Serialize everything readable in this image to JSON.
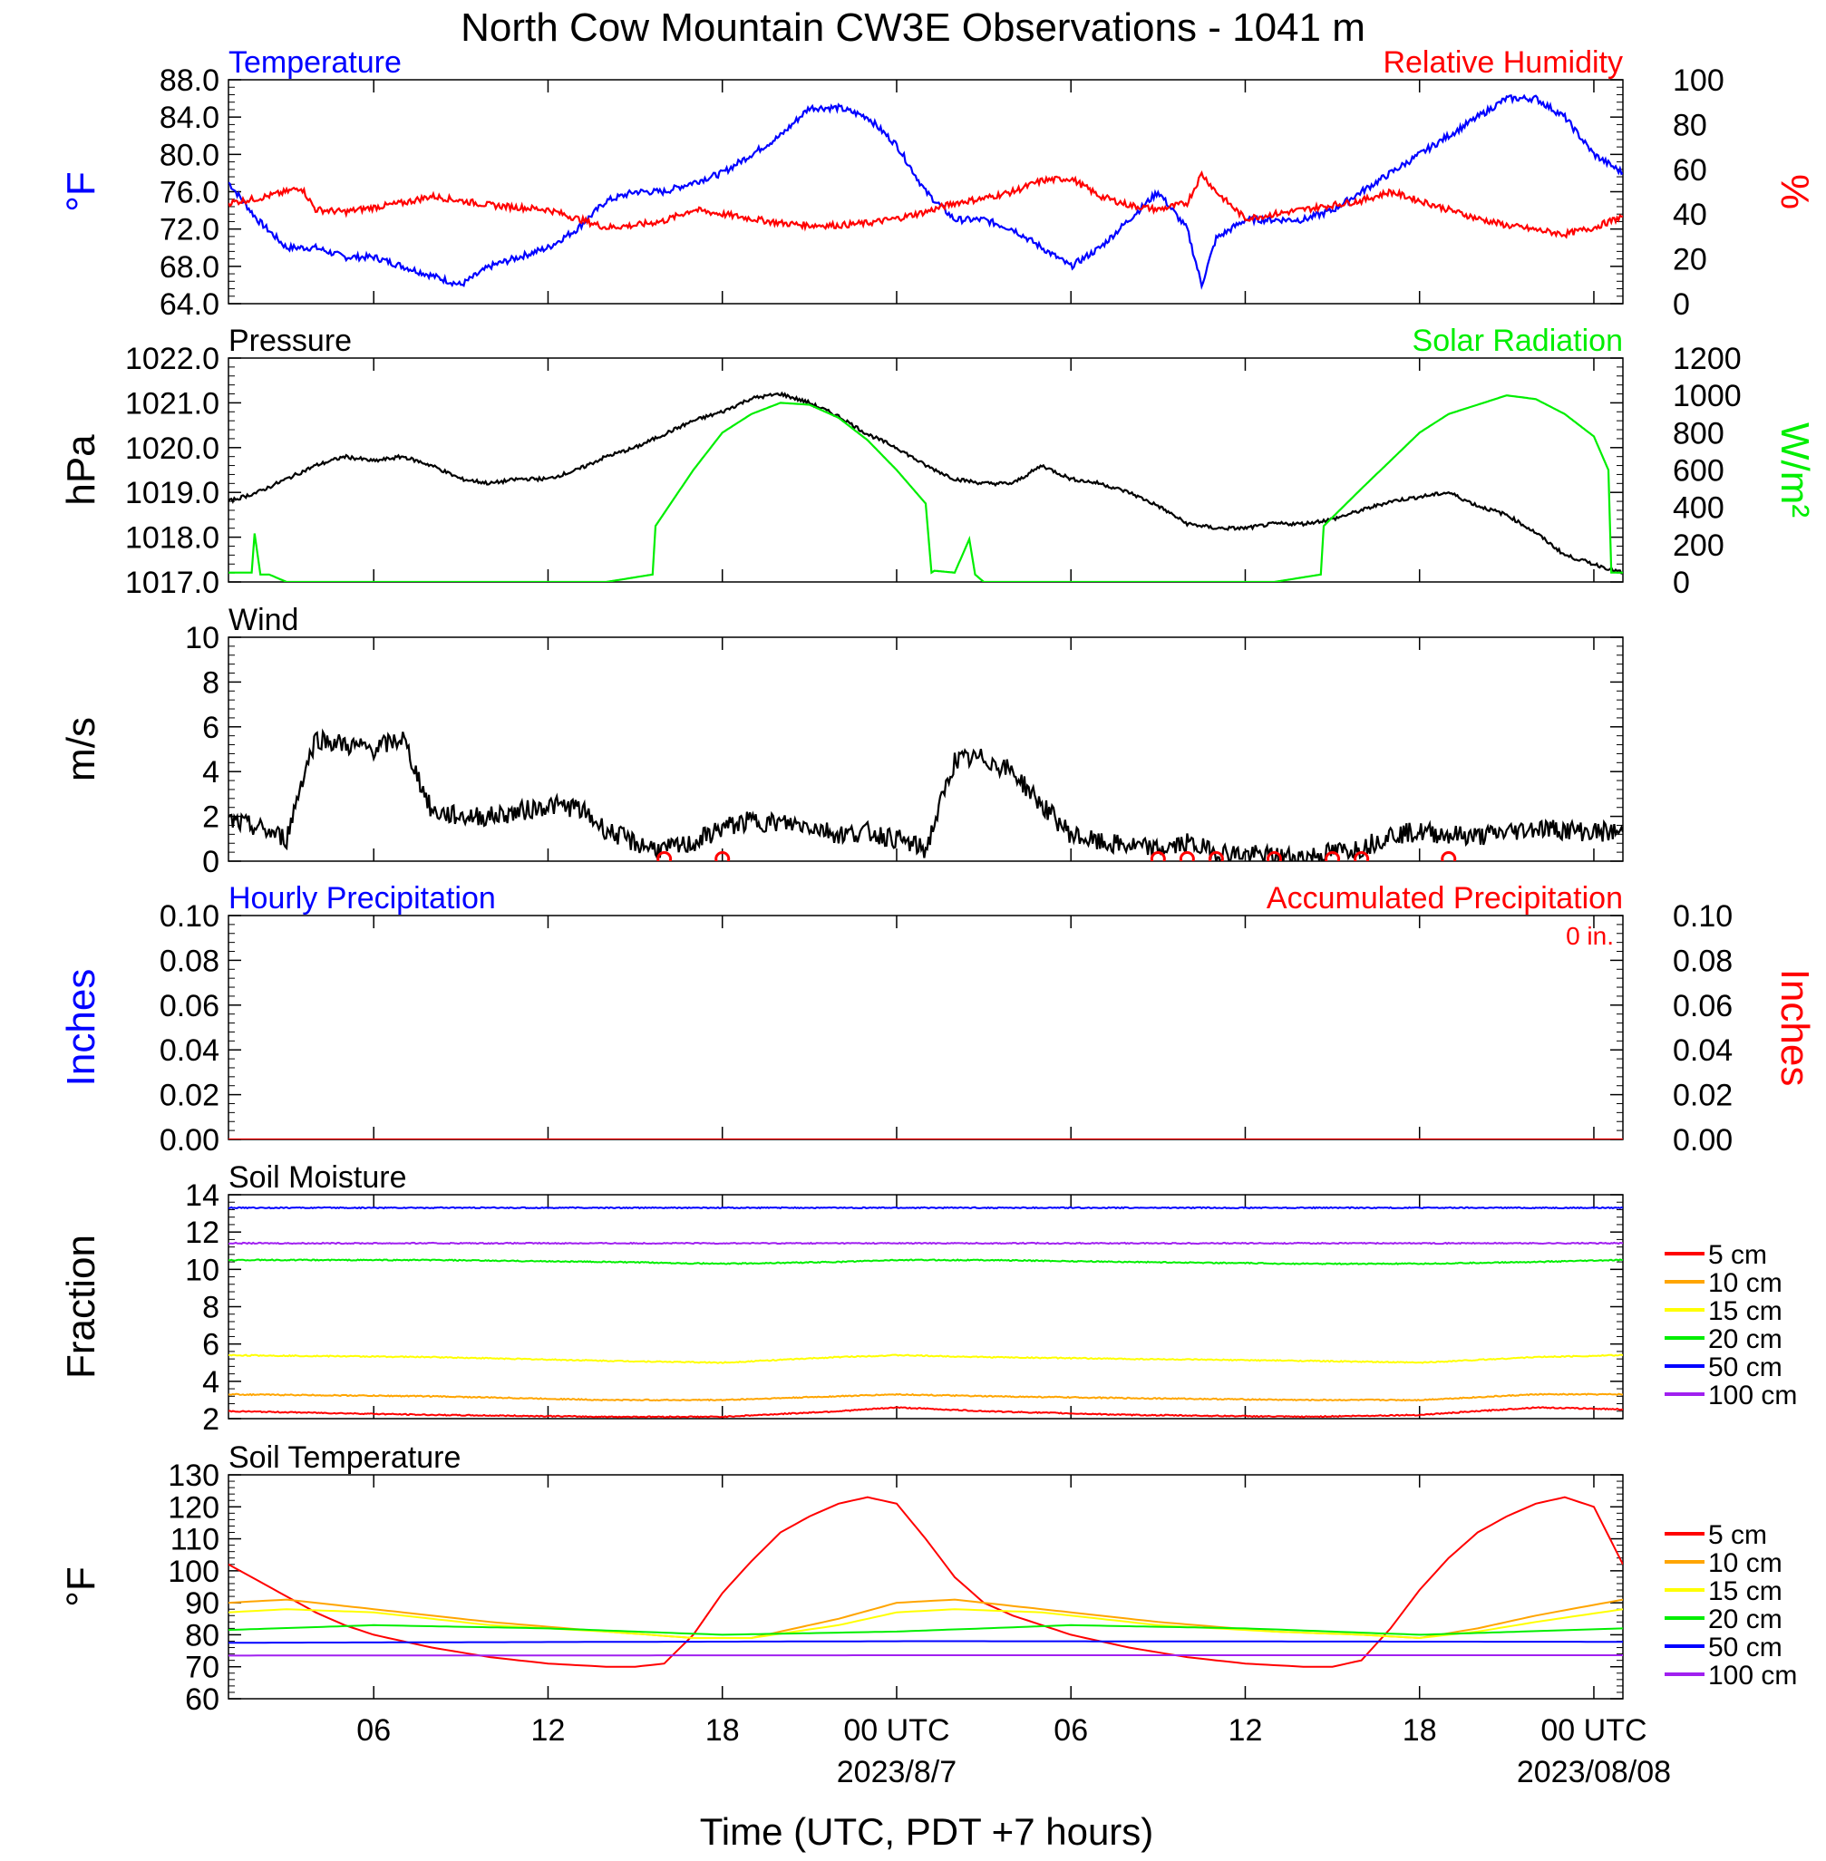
{
  "figure": {
    "title": "North Cow Mountain CW3E Observations - 1041 m",
    "xlabel": "Time (UTC, PDT +7 hours)",
    "x_ticks": [
      {
        "t": 6,
        "label": "06"
      },
      {
        "t": 12,
        "label": "12"
      },
      {
        "t": 18,
        "label": "18"
      },
      {
        "t": 24,
        "label": "00 UTC"
      },
      {
        "t": 30,
        "label": "06"
      },
      {
        "t": 36,
        "label": "12"
      },
      {
        "t": 42,
        "label": "18"
      },
      {
        "t": 48,
        "label": "00 UTC"
      }
    ],
    "date_labels": [
      {
        "t": 24,
        "label": "2023/8/7"
      },
      {
        "t": 48,
        "label": "2023/08/08"
      }
    ],
    "colors": {
      "blue": "#0000ff",
      "red": "#ff0000",
      "green": "#00ee00",
      "black": "#000000",
      "orange": "#ffa500",
      "yellow": "#ffff00",
      "purple": "#a020f0"
    }
  },
  "chart_data": [
    {
      "type": "line",
      "panel": "temperature_rh",
      "title_left": "Temperature",
      "title_right": "Relative Humidity",
      "ylabel_left": "°F",
      "ylabel_right": "%",
      "ylim_left": [
        64,
        88
      ],
      "ylim_right": [
        0,
        100
      ],
      "yticks_left": [
        "88.0",
        "84.0",
        "80.0",
        "76.0",
        "72.0",
        "68.0",
        "64.0"
      ],
      "yticks_right": [
        "100",
        "80",
        "60",
        "40",
        "20",
        "0"
      ],
      "x_start_hour": 1,
      "x_end_hour": 49,
      "series": [
        {
          "axis": "left",
          "color": "blue",
          "x": [
            1,
            2,
            3,
            4,
            5,
            6,
            7,
            8,
            9,
            10,
            11,
            12,
            13,
            14,
            15,
            16,
            17,
            18,
            19,
            20,
            21,
            22,
            23,
            24,
            25,
            26,
            27,
            28,
            29,
            30,
            31,
            32,
            33,
            34,
            34.5,
            35,
            36,
            37,
            38,
            39,
            40,
            41,
            42,
            43,
            44,
            45,
            46,
            47,
            48,
            49
          ],
          "y": [
            77,
            73,
            70,
            70,
            69,
            69,
            68,
            67,
            66,
            68,
            69,
            70,
            72,
            75,
            76,
            76,
            77,
            78,
            80,
            82,
            85,
            85,
            84,
            81,
            76,
            73,
            73,
            72,
            70,
            68,
            70,
            73,
            76,
            72,
            66,
            71,
            73,
            73,
            73,
            74,
            76,
            78,
            80,
            82,
            84,
            86,
            86,
            84,
            80,
            78
          ]
        },
        {
          "axis": "right",
          "color": "red",
          "x": [
            1,
            2,
            3,
            3.5,
            4,
            5,
            6,
            7,
            8,
            9,
            10,
            11,
            12,
            13,
            14,
            15,
            16,
            17,
            18,
            19,
            20,
            21,
            22,
            23,
            24,
            25,
            26,
            27,
            28,
            29,
            30,
            31,
            32,
            33,
            34,
            34.5,
            35,
            36,
            37,
            38,
            39,
            40,
            41,
            42,
            43,
            44,
            45,
            46,
            47,
            48,
            49
          ],
          "y": [
            45,
            47,
            50,
            52,
            42,
            41,
            43,
            45,
            48,
            46,
            44,
            43,
            42,
            38,
            34,
            35,
            37,
            42,
            40,
            38,
            36,
            35,
            35,
            36,
            38,
            41,
            45,
            47,
            50,
            55,
            56,
            48,
            44,
            42,
            45,
            58,
            50,
            38,
            40,
            42,
            44,
            46,
            50,
            46,
            42,
            38,
            35,
            33,
            31,
            34,
            39
          ]
        }
      ]
    },
    {
      "type": "line",
      "panel": "pressure_solar",
      "title_left": "Pressure",
      "title_right": "Solar Radiation",
      "ylabel_left": "hPa",
      "ylabel_right": "W/m²",
      "ylim_left": [
        1017,
        1022
      ],
      "ylim_right": [
        0,
        1200
      ],
      "yticks_left": [
        "1022.0",
        "1021.0",
        "1020.0",
        "1019.0",
        "1018.0",
        "1017.0"
      ],
      "yticks_right": [
        "1200",
        "1000",
        "800",
        "600",
        "400",
        "200",
        "0"
      ],
      "series": [
        {
          "axis": "left",
          "color": "black",
          "x": [
            1,
            2,
            3,
            4,
            5,
            6,
            7,
            8,
            9,
            10,
            11,
            12,
            13,
            14,
            15,
            16,
            17,
            18,
            19,
            20,
            21,
            22,
            23,
            24,
            25,
            26,
            27,
            28,
            29,
            30,
            31,
            32,
            33,
            34,
            35,
            36,
            37,
            38,
            39,
            40,
            41,
            42,
            43,
            44,
            45,
            46,
            47,
            48,
            49
          ],
          "y": [
            1018.8,
            1019.0,
            1019.3,
            1019.6,
            1019.8,
            1019.7,
            1019.8,
            1019.6,
            1019.3,
            1019.2,
            1019.3,
            1019.3,
            1019.5,
            1019.8,
            1020.0,
            1020.3,
            1020.6,
            1020.8,
            1021.1,
            1021.2,
            1021.0,
            1020.7,
            1020.3,
            1020.0,
            1019.6,
            1019.3,
            1019.2,
            1019.2,
            1019.6,
            1019.3,
            1019.2,
            1019.0,
            1018.7,
            1018.3,
            1018.2,
            1018.2,
            1018.3,
            1018.3,
            1018.4,
            1018.6,
            1018.8,
            1018.9,
            1019.0,
            1018.7,
            1018.5,
            1018.1,
            1017.6,
            1017.4,
            1017.2
          ]
        },
        {
          "axis": "right",
          "color": "green",
          "x": [
            1,
            1.8,
            1.9,
            2.1,
            2.4,
            3,
            12,
            14,
            15.6,
            15.7,
            17,
            18,
            19,
            20,
            21,
            22,
            23,
            24,
            25,
            25.2,
            25.3,
            26,
            26.5,
            26.7,
            27,
            28,
            35,
            37,
            38.6,
            38.7,
            40,
            41,
            42,
            43,
            44,
            45,
            46,
            47,
            48,
            48.5,
            48.6,
            49
          ],
          "y": [
            50,
            50,
            260,
            40,
            40,
            0,
            0,
            0,
            40,
            300,
            600,
            800,
            900,
            960,
            950,
            880,
            760,
            600,
            420,
            50,
            60,
            50,
            230,
            40,
            0,
            0,
            0,
            0,
            40,
            300,
            500,
            650,
            800,
            900,
            950,
            1000,
            980,
            900,
            780,
            600,
            50,
            50
          ]
        }
      ]
    },
    {
      "type": "line",
      "panel": "wind",
      "title_left": "Wind",
      "ylabel_left": "m/s",
      "ylim_left": [
        0,
        10
      ],
      "yticks_left": [
        "10",
        "8",
        "6",
        "4",
        "2",
        "0"
      ],
      "series": [
        {
          "axis": "left",
          "color": "black",
          "x": [
            1,
            2,
            3,
            3.5,
            4,
            5,
            6,
            7,
            8,
            9,
            10,
            11,
            12,
            13,
            14,
            15,
            16,
            17,
            18,
            19,
            20,
            21,
            22,
            23,
            24,
            25,
            26,
            27,
            28,
            29,
            30,
            31,
            32,
            33,
            34,
            35,
            36,
            37,
            38,
            39,
            40,
            41,
            42,
            43,
            44,
            45,
            46,
            47,
            48,
            49
          ],
          "y": [
            1.8,
            1.5,
            1.0,
            3.5,
            5.5,
            5.2,
            5.0,
            5.5,
            2.2,
            2.0,
            2.0,
            2.2,
            2.5,
            2.4,
            1.4,
            0.8,
            0.5,
            0.8,
            1.5,
            1.8,
            1.7,
            1.6,
            1.2,
            1.3,
            1.0,
            0.5,
            4.5,
            4.6,
            4.0,
            2.5,
            1.2,
            0.8,
            0.7,
            0.5,
            0.8,
            0.4,
            0.3,
            0.2,
            0.2,
            0.4,
            0.6,
            1.2,
            1.3,
            1.2,
            1.1,
            1.3,
            1.5,
            1.4,
            1.3,
            1.3
          ]
        }
      ],
      "calm_markers": [
        16,
        18,
        33,
        34,
        35,
        37,
        39,
        40,
        43
      ]
    },
    {
      "type": "line",
      "panel": "precipitation",
      "title_left": "Hourly Precipitation",
      "title_right": "Accumulated Precipitation",
      "annotation": "0 in.",
      "ylabel_left": "Inches",
      "ylabel_right": "Inches",
      "ylim_left": [
        0,
        0.1
      ],
      "ylim_right": [
        0,
        0.1
      ],
      "yticks_left": [
        "0.10",
        "0.08",
        "0.06",
        "0.04",
        "0.02",
        "0.00"
      ],
      "yticks_right": [
        "0.10",
        "0.08",
        "0.06",
        "0.04",
        "0.02",
        "0.00"
      ],
      "series": [
        {
          "axis": "left",
          "color": "red",
          "x": [
            1,
            49
          ],
          "y": [
            0,
            0
          ]
        }
      ]
    },
    {
      "type": "line",
      "panel": "soil_moisture",
      "title_left": "Soil Moisture",
      "ylabel_left": "Fraction",
      "ylim_left": [
        2,
        14
      ],
      "yticks_left": [
        "14",
        "12",
        "10",
        "8",
        "6",
        "4",
        "2"
      ],
      "legend_location": "right",
      "series": [
        {
          "name": "5 cm",
          "color": "red",
          "x": [
            1,
            8,
            14,
            18,
            22,
            24,
            27,
            32,
            38,
            42,
            46,
            49
          ],
          "y": [
            2.4,
            2.2,
            2.1,
            2.1,
            2.4,
            2.6,
            2.4,
            2.2,
            2.1,
            2.2,
            2.6,
            2.5
          ]
        },
        {
          "name": "10 cm",
          "color": "orange",
          "x": [
            1,
            8,
            14,
            18,
            22,
            24,
            27,
            32,
            38,
            42,
            46,
            49
          ],
          "y": [
            3.3,
            3.2,
            3.0,
            3.0,
            3.2,
            3.3,
            3.2,
            3.1,
            3.0,
            3.0,
            3.3,
            3.3
          ]
        },
        {
          "name": "15 cm",
          "color": "yellow",
          "x": [
            1,
            8,
            14,
            18,
            22,
            24,
            27,
            32,
            38,
            42,
            46,
            49
          ],
          "y": [
            5.4,
            5.3,
            5.1,
            5.0,
            5.3,
            5.4,
            5.3,
            5.2,
            5.1,
            5.0,
            5.3,
            5.4
          ]
        },
        {
          "name": "20 cm",
          "color": "green",
          "x": [
            1,
            8,
            14,
            18,
            22,
            24,
            27,
            32,
            38,
            42,
            46,
            49
          ],
          "y": [
            10.5,
            10.5,
            10.4,
            10.3,
            10.4,
            10.5,
            10.5,
            10.4,
            10.3,
            10.3,
            10.4,
            10.5
          ]
        },
        {
          "name": "50 cm",
          "color": "blue",
          "x": [
            1,
            49
          ],
          "y": [
            13.3,
            13.3
          ]
        },
        {
          "name": "100 cm",
          "color": "purple",
          "x": [
            1,
            49
          ],
          "y": [
            11.4,
            11.4
          ]
        }
      ]
    },
    {
      "type": "line",
      "panel": "soil_temperature",
      "title_left": "Soil Temperature",
      "ylabel_left": "°F",
      "ylim_left": [
        60,
        130
      ],
      "yticks_left": [
        "130",
        "120",
        "110",
        "100",
        "90",
        "80",
        "70",
        "60"
      ],
      "legend_location": "right",
      "series": [
        {
          "name": "5 cm",
          "color": "red",
          "x": [
            1,
            2,
            3,
            4,
            5,
            6,
            8,
            10,
            12,
            14,
            15,
            16,
            17,
            18,
            19,
            20,
            21,
            22,
            23,
            24,
            25,
            26,
            27,
            28,
            30,
            32,
            34,
            36,
            38,
            39,
            40,
            41,
            42,
            43,
            44,
            45,
            46,
            47,
            48,
            49
          ],
          "y": [
            102,
            97,
            92,
            87,
            83,
            80,
            76,
            73,
            71,
            70,
            70,
            71,
            80,
            93,
            103,
            112,
            117,
            121,
            123,
            121,
            110,
            98,
            90,
            86,
            80,
            76,
            73,
            71,
            70,
            70,
            72,
            82,
            94,
            104,
            112,
            117,
            121,
            123,
            120,
            102
          ]
        },
        {
          "name": "10 cm",
          "color": "orange",
          "x": [
            1,
            3,
            6,
            10,
            14,
            17,
            19,
            22,
            24,
            26,
            29,
            33,
            37,
            40,
            42,
            44,
            46,
            49
          ],
          "y": [
            90,
            91,
            88,
            84,
            81,
            79,
            79,
            85,
            90,
            91,
            88,
            84,
            81,
            80,
            79,
            82,
            86,
            91
          ]
        },
        {
          "name": "15 cm",
          "color": "yellow",
          "x": [
            1,
            3,
            6,
            10,
            14,
            17,
            19,
            22,
            24,
            26,
            29,
            33,
            37,
            40,
            42,
            44,
            46,
            49
          ],
          "y": [
            87,
            88,
            87,
            83,
            81,
            79,
            79,
            83,
            87,
            88,
            87,
            83,
            81,
            80,
            79,
            81,
            84,
            88
          ]
        },
        {
          "name": "20 cm",
          "color": "green",
          "x": [
            1,
            6,
            12,
            18,
            24,
            30,
            36,
            42,
            49
          ],
          "y": [
            81.5,
            83,
            82,
            80,
            81,
            83,
            82,
            80,
            82
          ]
        },
        {
          "name": "50 cm",
          "color": "blue",
          "x": [
            1,
            25,
            49
          ],
          "y": [
            77.5,
            78,
            77.8
          ]
        },
        {
          "name": "100 cm",
          "color": "purple",
          "x": [
            1,
            25,
            49
          ],
          "y": [
            73.5,
            73.6,
            73.6
          ]
        }
      ]
    }
  ]
}
